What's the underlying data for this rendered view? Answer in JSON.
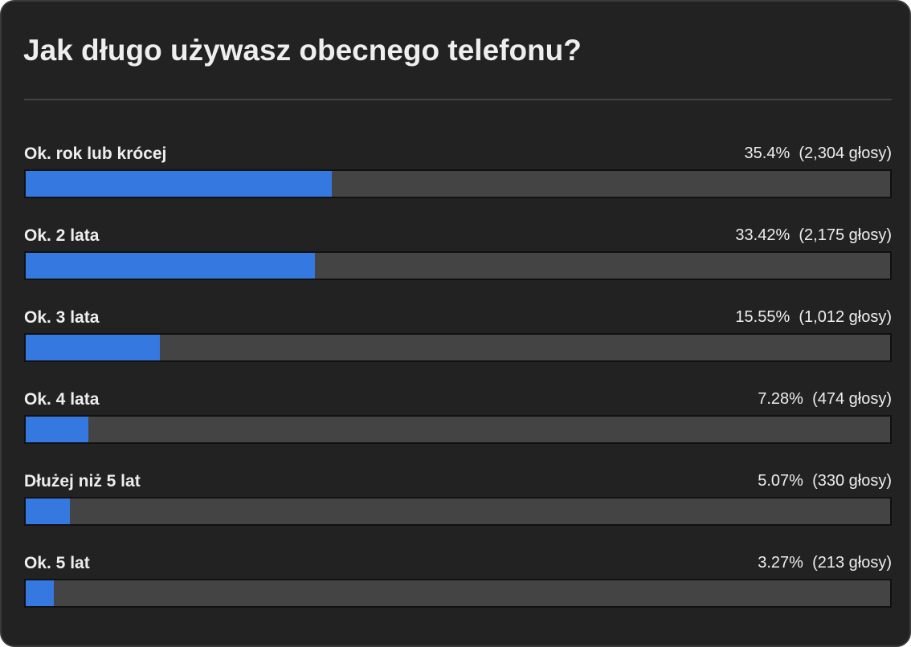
{
  "poll": {
    "title": "Jak długo używasz obecnego telefonu?",
    "accent_color": "#3478e0",
    "options": [
      {
        "label": "Ok. rok lub krócej",
        "percent": 35.4,
        "percent_text": "35.4%",
        "votes_text": "(2,304 głosy)"
      },
      {
        "label": "Ok. 2 lata",
        "percent": 33.42,
        "percent_text": "33.42%",
        "votes_text": "(2,175 głosy)"
      },
      {
        "label": "Ok. 3 lata",
        "percent": 15.55,
        "percent_text": "15.55%",
        "votes_text": "(1,012 głosy)"
      },
      {
        "label": "Ok. 4 lata",
        "percent": 7.28,
        "percent_text": "7.28%",
        "votes_text": "(474 głosy)"
      },
      {
        "label": "Dłużej niż 5 lat",
        "percent": 5.07,
        "percent_text": "5.07%",
        "votes_text": "(330 głosy)"
      },
      {
        "label": "Ok. 5 lat",
        "percent": 3.27,
        "percent_text": "3.27%",
        "votes_text": "(213 głosy)"
      }
    ]
  }
}
